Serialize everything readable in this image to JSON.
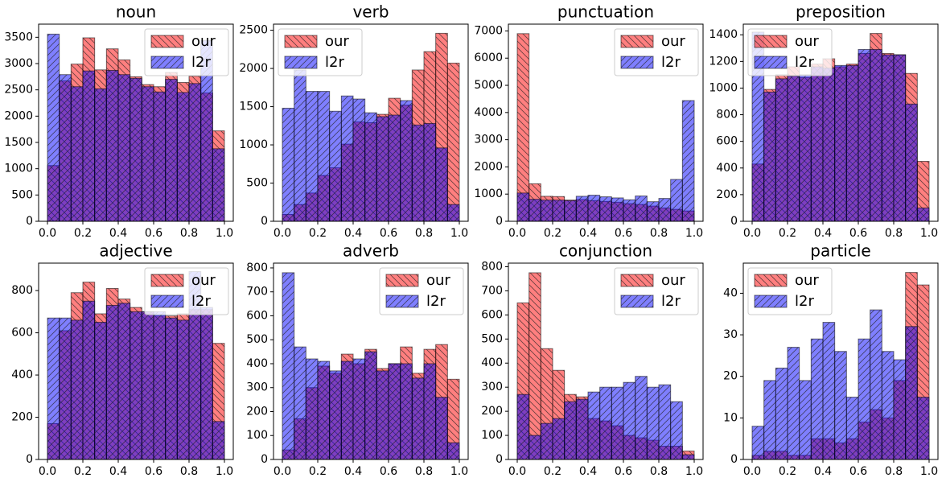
{
  "chart_data": [
    {
      "type": "histogram",
      "title": "noun",
      "bins": [
        0,
        0.0667,
        0.1333,
        0.2,
        0.2667,
        0.3333,
        0.4,
        0.4667,
        0.5333,
        0.6,
        0.6667,
        0.7333,
        0.8,
        0.8667,
        0.9333,
        1
      ],
      "series": [
        {
          "name": "our",
          "color": "#ff0000",
          "values": [
            1060,
            2670,
            2990,
            3490,
            2880,
            3280,
            3070,
            2750,
            2600,
            2560,
            2830,
            2640,
            2760,
            2440,
            1720
          ]
        },
        {
          "name": "l2r",
          "color": "#0000ff",
          "values": [
            3560,
            2790,
            2560,
            2860,
            2520,
            2870,
            2790,
            2720,
            2560,
            2460,
            2700,
            2450,
            2620,
            3440,
            1380
          ]
        }
      ],
      "xlim": [
        -0.05,
        1.05
      ],
      "ylim": [
        0,
        3750
      ],
      "xticks": [
        {
          "value": 0,
          "label": "0.0"
        },
        0.2,
        0.4,
        0.6,
        0.8,
        {
          "value": 1,
          "label": "1.0"
        }
      ],
      "yticks": [
        0,
        500,
        1000,
        1500,
        2000,
        2500,
        3000,
        3500
      ],
      "legend": "upper right"
    },
    {
      "type": "histogram",
      "title": "verb",
      "bins": [
        0,
        0.0667,
        0.1333,
        0.2,
        0.2667,
        0.3333,
        0.4,
        0.4667,
        0.5333,
        0.6,
        0.6667,
        0.7333,
        0.8,
        0.8667,
        0.9333,
        1
      ],
      "series": [
        {
          "name": "our",
          "color": "#ff0000",
          "values": [
            90,
            220,
            370,
            600,
            700,
            1010,
            1300,
            1290,
            1400,
            1610,
            1520,
            1980,
            2220,
            2460,
            2070
          ]
        },
        {
          "name": "l2r",
          "color": "#0000ff",
          "values": [
            1480,
            1980,
            1700,
            1700,
            1440,
            1640,
            1600,
            1420,
            1370,
            1390,
            1580,
            1260,
            1280,
            960,
            220
          ]
        }
      ],
      "xlim": [
        -0.05,
        1.05
      ],
      "ylim": [
        0,
        2580
      ],
      "xticks": [
        {
          "value": 0,
          "label": "0.0"
        },
        0.2,
        0.4,
        0.6,
        0.8,
        {
          "value": 1,
          "label": "1.0"
        }
      ],
      "yticks": [
        0,
        500,
        1000,
        1500,
        2000,
        2500
      ],
      "legend": "upper left"
    },
    {
      "type": "histogram",
      "title": "punctuation",
      "bins": [
        0,
        0.0667,
        0.1333,
        0.2,
        0.2667,
        0.3333,
        0.4,
        0.4667,
        0.5333,
        0.6,
        0.6667,
        0.7333,
        0.8,
        0.8667,
        0.9333,
        1
      ],
      "series": [
        {
          "name": "our",
          "color": "#ff0000",
          "values": [
            6900,
            1380,
            920,
            910,
            780,
            800,
            760,
            730,
            700,
            650,
            620,
            560,
            490,
            440,
            380
          ]
        },
        {
          "name": "l2r",
          "color": "#0000ff",
          "values": [
            1040,
            810,
            780,
            780,
            760,
            920,
            960,
            900,
            860,
            790,
            930,
            720,
            840,
            1540,
            4440
          ]
        }
      ],
      "xlim": [
        -0.05,
        1.05
      ],
      "ylim": [
        0,
        7250
      ],
      "xticks": [
        {
          "value": 0,
          "label": "0.0"
        },
        0.2,
        0.4,
        0.6,
        0.8,
        {
          "value": 1,
          "label": "1.0"
        }
      ],
      "yticks": [
        0,
        1000,
        2000,
        3000,
        4000,
        5000,
        6000,
        7000
      ],
      "legend": "upper right"
    },
    {
      "type": "histogram",
      "title": "preposition",
      "bins": [
        0,
        0.0667,
        0.1333,
        0.2,
        0.2667,
        0.3333,
        0.4,
        0.4667,
        0.5333,
        0.6,
        0.6667,
        0.7333,
        0.8,
        0.8667,
        0.9333,
        1
      ],
      "series": [
        {
          "name": "our",
          "color": "#ff0000",
          "values": [
            430,
            990,
            1100,
            1160,
            1080,
            1180,
            1220,
            1160,
            1180,
            1260,
            1410,
            1260,
            1250,
            1110,
            450
          ]
        },
        {
          "name": "l2r",
          "color": "#0000ff",
          "values": [
            1420,
            970,
            1070,
            1090,
            1100,
            1160,
            1150,
            1170,
            1170,
            1290,
            1290,
            1250,
            1250,
            880,
            100
          ]
        }
      ],
      "xlim": [
        -0.05,
        1.05
      ],
      "ylim": [
        0,
        1480
      ],
      "xticks": [
        {
          "value": 0,
          "label": "0.0"
        },
        0.2,
        0.4,
        0.6,
        0.8,
        {
          "value": 1,
          "label": "1.0"
        }
      ],
      "yticks": [
        0,
        200,
        400,
        600,
        800,
        1000,
        1200,
        1400
      ],
      "legend": "upper left"
    },
    {
      "type": "histogram",
      "title": "adjective",
      "bins": [
        0,
        0.0667,
        0.1333,
        0.2,
        0.2667,
        0.3333,
        0.4,
        0.4667,
        0.5333,
        0.6,
        0.6667,
        0.7333,
        0.8,
        0.8667,
        0.9333,
        1
      ],
      "series": [
        {
          "name": "our",
          "color": "#ff0000",
          "values": [
            170,
            610,
            790,
            840,
            690,
            810,
            760,
            720,
            700,
            680,
            680,
            690,
            710,
            710,
            550
          ]
        },
        {
          "name": "l2r",
          "color": "#0000ff",
          "values": [
            670,
            670,
            660,
            750,
            650,
            730,
            740,
            700,
            700,
            700,
            670,
            660,
            890,
            720,
            180
          ]
        }
      ],
      "xlim": [
        -0.05,
        1.05
      ],
      "ylim": [
        0,
        930
      ],
      "xticks": [
        {
          "value": 0,
          "label": "0.0"
        },
        0.2,
        0.4,
        0.6,
        0.8,
        {
          "value": 1,
          "label": "1.0"
        }
      ],
      "yticks": [
        0,
        200,
        400,
        600,
        800
      ],
      "legend": "upper right"
    },
    {
      "type": "histogram",
      "title": "adverb",
      "bins": [
        0,
        0.0667,
        0.1333,
        0.2,
        0.2667,
        0.3333,
        0.4,
        0.4667,
        0.5333,
        0.6,
        0.6667,
        0.7333,
        0.8,
        0.8667,
        0.9333,
        1
      ],
      "series": [
        {
          "name": "our",
          "color": "#ff0000",
          "values": [
            40,
            170,
            300,
            390,
            360,
            440,
            400,
            460,
            380,
            400,
            470,
            360,
            460,
            480,
            335
          ]
        },
        {
          "name": "l2r",
          "color": "#0000ff",
          "values": [
            780,
            470,
            420,
            410,
            370,
            410,
            420,
            450,
            370,
            400,
            400,
            340,
            400,
            260,
            70
          ]
        }
      ],
      "xlim": [
        -0.05,
        1.05
      ],
      "ylim": [
        0,
        820
      ],
      "xticks": [
        {
          "value": 0,
          "label": "0.0"
        },
        0.2,
        0.4,
        0.6,
        0.8,
        {
          "value": 1,
          "label": "1.0"
        }
      ],
      "yticks": [
        0,
        100,
        200,
        300,
        400,
        500,
        600,
        700,
        800
      ],
      "legend": "upper right"
    },
    {
      "type": "histogram",
      "title": "conjunction",
      "bins": [
        0,
        0.0667,
        0.1333,
        0.2,
        0.2667,
        0.3333,
        0.4,
        0.4667,
        0.5333,
        0.6,
        0.6667,
        0.7333,
        0.8,
        0.8667,
        0.9333,
        1
      ],
      "series": [
        {
          "name": "our",
          "color": "#ff0000",
          "values": [
            650,
            775,
            460,
            370,
            270,
            260,
            170,
            160,
            140,
            100,
            90,
            80,
            55,
            55,
            35
          ]
        },
        {
          "name": "l2r",
          "color": "#0000ff",
          "values": [
            270,
            100,
            150,
            170,
            240,
            250,
            280,
            300,
            300,
            320,
            345,
            300,
            310,
            240,
            20
          ]
        }
      ],
      "xlim": [
        -0.05,
        1.05
      ],
      "ylim": [
        0,
        815
      ],
      "xticks": [
        {
          "value": 0,
          "label": "0.0"
        },
        0.2,
        0.4,
        0.6,
        0.8,
        {
          "value": 1,
          "label": "1.0"
        }
      ],
      "yticks": [
        0,
        100,
        200,
        300,
        400,
        500,
        600,
        700,
        800
      ],
      "legend": "upper right"
    },
    {
      "type": "histogram",
      "title": "particle",
      "bins": [
        0,
        0.0667,
        0.1333,
        0.2,
        0.2667,
        0.3333,
        0.4,
        0.4667,
        0.5333,
        0.6,
        0.6667,
        0.7333,
        0.8,
        0.8667,
        0.9333,
        1
      ],
      "series": [
        {
          "name": "our",
          "color": "#ff0000",
          "values": [
            1,
            2,
            2,
            1,
            1,
            5,
            5,
            4,
            5,
            9,
            12,
            10,
            19,
            45,
            42
          ]
        },
        {
          "name": "l2r",
          "color": "#0000ff",
          "values": [
            8,
            19,
            22,
            27,
            19,
            29,
            33,
            26,
            15,
            29,
            36,
            26,
            24,
            32,
            15
          ]
        }
      ],
      "xlim": [
        -0.05,
        1.05
      ],
      "ylim": [
        0,
        47.25
      ],
      "xticks": [
        {
          "value": 0,
          "label": "0.0"
        },
        0.2,
        0.4,
        0.6,
        0.8,
        {
          "value": 1,
          "label": "1.0"
        }
      ],
      "yticks": [
        0,
        10,
        20,
        30,
        40
      ],
      "legend": "upper left"
    }
  ]
}
